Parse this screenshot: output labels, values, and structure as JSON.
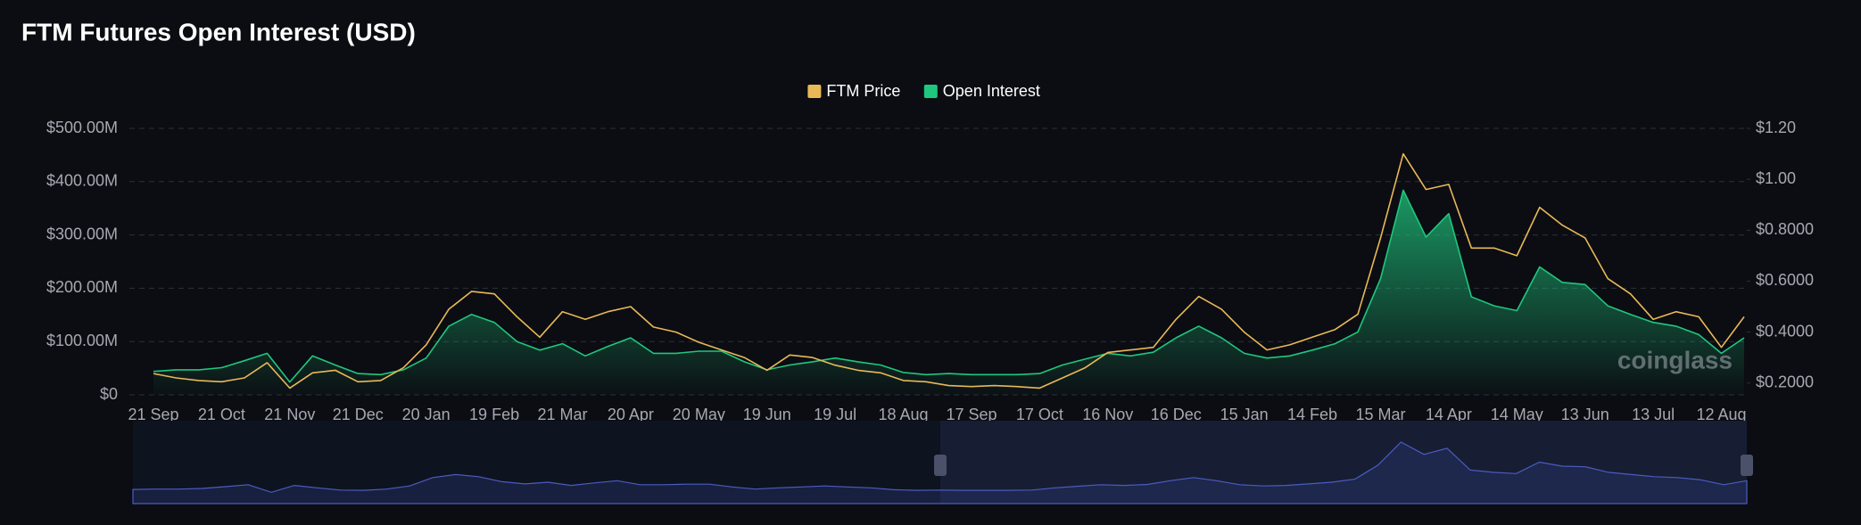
{
  "chart_data": {
    "type": "line",
    "title": "FTM Futures Open Interest (USD)",
    "watermark": "coinglass",
    "legend": "top",
    "grid": true,
    "categories": [
      "21 Sep",
      null,
      null,
      "21 Oct",
      null,
      null,
      "21 Nov",
      null,
      null,
      "21 Dec",
      null,
      null,
      "20 Jan",
      null,
      null,
      "19 Feb",
      null,
      null,
      "21 Mar",
      null,
      null,
      "20 Apr",
      null,
      null,
      "20 May",
      null,
      null,
      "19 Jun",
      null,
      null,
      "19 Jul",
      null,
      null,
      "18 Aug",
      null,
      null,
      "17 Sep",
      null,
      null,
      "17 Oct",
      null,
      null,
      "16 Nov",
      null,
      null,
      "16 Dec",
      null,
      null,
      "15 Jan",
      null,
      null,
      "14 Feb",
      null,
      null,
      "15 Mar",
      null,
      null,
      "14 Apr",
      null,
      null,
      "14 May",
      null,
      null,
      "13 Jun",
      null,
      null,
      "13 Jul",
      null,
      null,
      "12 Aug",
      null
    ],
    "series": [
      {
        "name": "FTM Price",
        "color": "#e9b857",
        "axis": "y2",
        "values": [
          0.237,
          0.22,
          0.21,
          0.205,
          0.22,
          0.28,
          0.18,
          0.24,
          0.25,
          0.205,
          0.21,
          0.26,
          0.35,
          0.49,
          0.56,
          0.55,
          0.46,
          0.38,
          0.48,
          0.45,
          0.48,
          0.5,
          0.42,
          0.4,
          0.36,
          0.33,
          0.3,
          0.25,
          0.31,
          0.3,
          0.27,
          0.25,
          0.24,
          0.21,
          0.205,
          0.19,
          0.186,
          0.19,
          0.186,
          0.18,
          0.22,
          0.26,
          0.32,
          0.33,
          0.34,
          0.45,
          0.54,
          0.49,
          0.4,
          0.33,
          0.35,
          0.38,
          0.41,
          0.47,
          0.77,
          1.1,
          0.96,
          0.98,
          0.73,
          0.73,
          0.7,
          0.89,
          0.82,
          0.77,
          0.61,
          0.55,
          0.45,
          0.48,
          0.46,
          0.34,
          0.46
        ]
      },
      {
        "name": "Open Interest",
        "color": "#1fc77e",
        "values": [
          44000000,
          47000000,
          47000000,
          51000000,
          64000000,
          78000000,
          24000000,
          73000000,
          56000000,
          40000000,
          38000000,
          47000000,
          69000000,
          129000000,
          151000000,
          136000000,
          100000000,
          84000000,
          96000000,
          73000000,
          91000000,
          107000000,
          78000000,
          78000000,
          82000000,
          82000000,
          62000000,
          47000000,
          56000000,
          62000000,
          69000000,
          62000000,
          56000000,
          42000000,
          38000000,
          40000000,
          38000000,
          38000000,
          38000000,
          40000000,
          56000000,
          67000000,
          78000000,
          73000000,
          80000000,
          107000000,
          129000000,
          107000000,
          78000000,
          69000000,
          73000000,
          84000000,
          96000000,
          118000000,
          218000000,
          384000000,
          296000000,
          340000000,
          184000000,
          167000000,
          158000000,
          240000000,
          211000000,
          207000000,
          167000000,
          151000000,
          136000000,
          129000000,
          113000000,
          78000000,
          107000000
        ]
      }
    ],
    "ylim": [
      0,
      500000000
    ],
    "yticks": [
      {
        "value": 0,
        "label": "$0"
      },
      {
        "value": 100000000,
        "label": "$100.00M"
      },
      {
        "value": 200000000,
        "label": "$200.00M"
      },
      {
        "value": 300000000,
        "label": "$300.00M"
      },
      {
        "value": 400000000,
        "label": "$400.00M"
      },
      {
        "value": 500000000,
        "label": "$500.00M"
      }
    ],
    "y2lim": [
      0.1535,
      1.2
    ],
    "y2ticks": [
      {
        "value": 0.2,
        "label": "$0.2000"
      },
      {
        "value": 0.4,
        "label": "$0.4000"
      },
      {
        "value": 0.6,
        "label": "$0.6000"
      },
      {
        "value": 0.8,
        "label": "$0.8000"
      },
      {
        "value": 1.0,
        "label": "$1.00"
      },
      {
        "value": 1.2,
        "label": "$1.20"
      }
    ]
  }
}
